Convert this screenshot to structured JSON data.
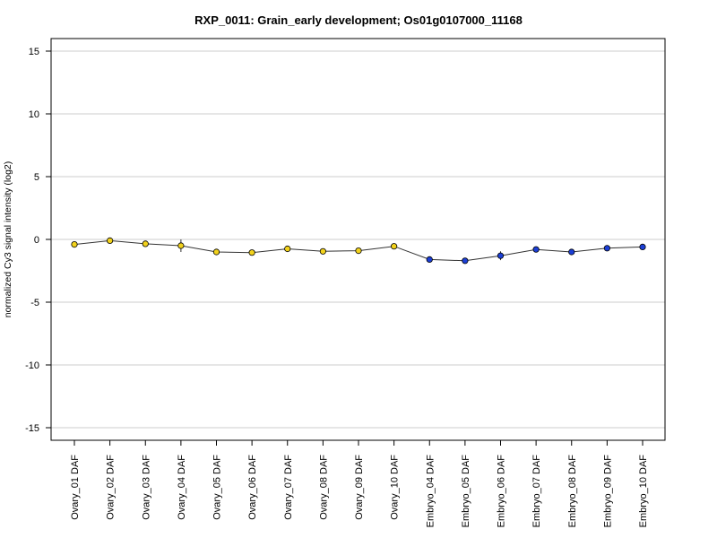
{
  "chart_data": {
    "type": "line",
    "title": "RXP_0011: Grain_early development; Os01g0107000_11168",
    "xlabel": "",
    "ylabel": "normalized Cy3 signal intensity (log2)",
    "ylim": [
      -16,
      16
    ],
    "yticks": [
      15,
      10,
      5,
      0,
      -5,
      -10,
      -15
    ],
    "grid": true,
    "legend": "none",
    "categories": [
      "Ovary_01 DAF",
      "Ovary_02 DAF",
      "Ovary_03 DAF",
      "Ovary_04 DAF",
      "Ovary_05 DAF",
      "Ovary_06 DAF",
      "Ovary_07 DAF",
      "Ovary_08 DAF",
      "Ovary_09 DAF",
      "Ovary_10 DAF",
      "Embryo_04 DAF",
      "Embryo_05 DAF",
      "Embryo_06 DAF",
      "Embryo_07 DAF",
      "Embryo_08 DAF",
      "Embryo_09 DAF",
      "Embryo_10 DAF"
    ],
    "values": [
      -0.4,
      -0.1,
      -0.35,
      -0.5,
      -1.0,
      -1.05,
      -0.75,
      -0.95,
      -0.9,
      -0.55,
      -1.6,
      -1.7,
      -1.3,
      -0.8,
      -1.0,
      -0.7,
      -0.6
    ],
    "errors": [
      0.1,
      0.1,
      0.1,
      0.5,
      0.1,
      0.1,
      0.1,
      0.1,
      0.1,
      0.15,
      0.1,
      0.1,
      0.35,
      0.2,
      0.1,
      0.1,
      0.1
    ],
    "point_colors": [
      "#f2d21c",
      "#f2d21c",
      "#f2d21c",
      "#f2d21c",
      "#f2d21c",
      "#f2d21c",
      "#f2d21c",
      "#f2d21c",
      "#f2d21c",
      "#f2d21c",
      "#1c3fd6",
      "#1c3fd6",
      "#1c3fd6",
      "#1c3fd6",
      "#1c3fd6",
      "#1c3fd6",
      "#1c3fd6"
    ],
    "colors": {
      "ovary": "#f2d21c",
      "embryo": "#1c3fd6",
      "line": "#333333",
      "grid": "#cccccc"
    }
  }
}
